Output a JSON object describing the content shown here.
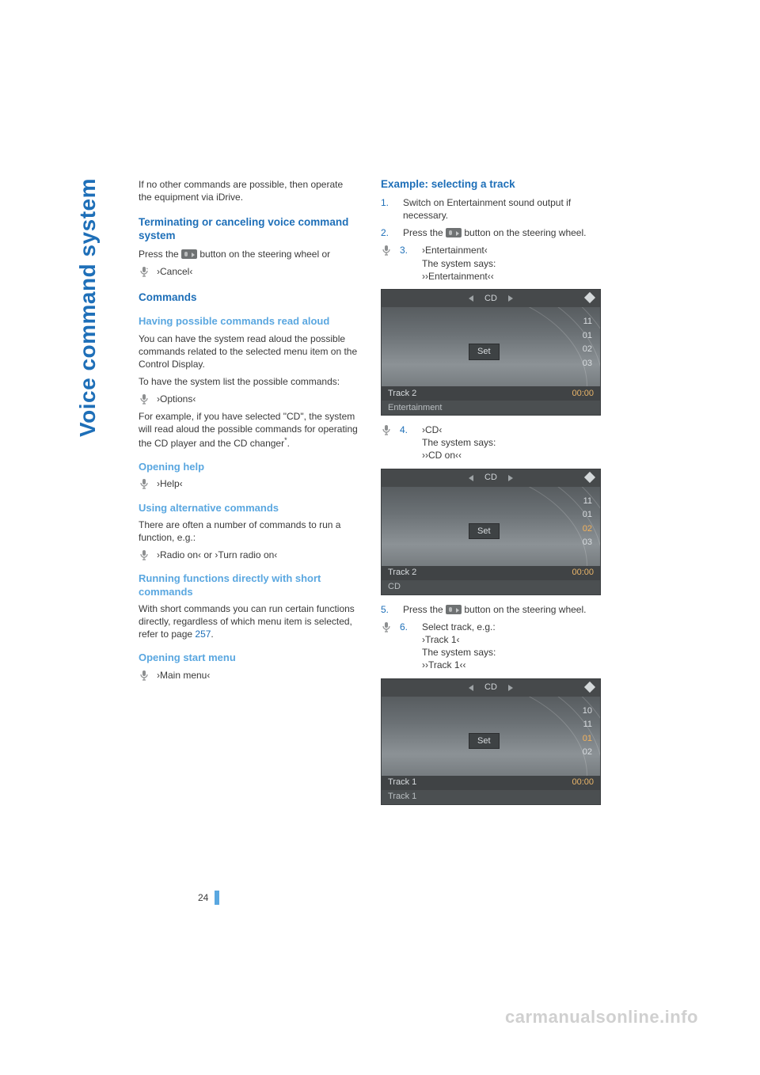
{
  "sideTitle": "Voice command system",
  "pageNumber": "24",
  "watermark": "carmanualsonline.info",
  "left": {
    "intro": "If no other commands are possible, then oper­ate the equipment via iDrive.",
    "h_terminate": "Terminating or canceling voice command system",
    "terminate_press1": "Press the ",
    "terminate_press2": " button on the steering wheel or",
    "cmd_cancel": "›Cancel‹",
    "h_commands": "Commands",
    "h_read": "Having possible commands read aloud",
    "read_p1": "You can have the system read aloud the possi­ble commands related to the selected menu item on the Control Display.",
    "read_p2": "To have the system list the possible com­mands:",
    "cmd_options": "›Options‹",
    "read_p3a": "For example, if you have selected \"CD\", the system will read aloud the possible commands for operating the CD player and the CD changer",
    "read_p3b": ".",
    "h_help": "Opening help",
    "cmd_help": "›Help‹",
    "h_alt": "Using alternative commands",
    "alt_p": "There are often a number of commands to run a function, e.g.:",
    "cmd_radio": "›Radio on‹  or  ›Turn radio on‹",
    "h_short": "Running functions directly with short commands",
    "short_p_a": "With short commands you can run certain func­tions directly, regardless of which menu item is selected, refer to page ",
    "short_page": "257",
    "short_p_b": ".",
    "h_start": "Opening start menu",
    "cmd_main": "›Main menu‹"
  },
  "right": {
    "h_example": "Example: selecting a track",
    "step1": "Switch on Entertainment sound output if necessary.",
    "step2a": "Press the ",
    "step2b": " button on the steering wheel.",
    "step3_cmd": "›Entertainment‹",
    "step3_says": "The system says:",
    "step3_resp": "››Entertainment‹‹",
    "step4_cmd": "›CD‹",
    "step4_says": "The system says:",
    "step4_resp": "››CD on‹‹",
    "step5a": "Press the ",
    "step5b": " button on the steering wheel.",
    "step6_intro": "Select track, e.g.:",
    "step6_cmd": "›Track 1‹",
    "step6_says": "The system says:",
    "step6_resp": "››Track 1‹‹"
  },
  "sc1": {
    "top": "CD",
    "set": "Set",
    "nums": [
      "11",
      "01",
      "02",
      "03"
    ],
    "hotIdx": -1,
    "track": "Track 2",
    "time": "00:00",
    "bottom": "Entertainment"
  },
  "sc2": {
    "top": "CD",
    "set": "Set",
    "nums": [
      "11",
      "01",
      "02",
      "03"
    ],
    "hotIdx": 2,
    "track": "Track 2",
    "time": "00:00",
    "bottom": "CD"
  },
  "sc3": {
    "top": "CD",
    "set": "Set",
    "nums": [
      "10",
      "11",
      "01",
      "02"
    ],
    "hotIdx": 2,
    "track": "Track 1",
    "time": "00:00",
    "bottom": "Track 1"
  }
}
